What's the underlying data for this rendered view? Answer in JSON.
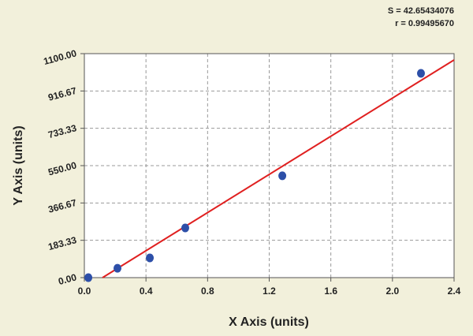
{
  "chart_data": {
    "type": "scatter",
    "annotations": [
      "S = 42.65434076",
      "r = 0.99495670"
    ],
    "x_label": "X Axis (units)",
    "y_label": "Y Axis (units)",
    "x": [
      0.026,
      0.215,
      0.425,
      0.655,
      1.285,
      2.185
    ],
    "values": [
      0,
      46,
      97,
      244,
      500,
      1003
    ],
    "color": "#2d4fa8",
    "fit_line": {
      "x": [
        0.118,
        2.4
      ],
      "values": [
        0,
        1069
      ],
      "color": "#e02020"
    },
    "xlim": [
      0,
      2.4
    ],
    "xticks": [
      {
        "value": 0,
        "label": "0.0"
      },
      0.4,
      0.8,
      {
        "value": 1.2,
        "label": "1.2"
      },
      1.6,
      {
        "value": 2,
        "label": "2.0"
      },
      2.4
    ],
    "ylim": [
      0,
      1100
    ],
    "yticks": [
      {
        "value": 0,
        "label": "0.00"
      },
      183.33,
      366.67,
      {
        "value": 550,
        "label": "550.00"
      },
      733.33,
      916.67,
      {
        "value": 1100,
        "label": "1100.00"
      }
    ],
    "grid": true
  }
}
